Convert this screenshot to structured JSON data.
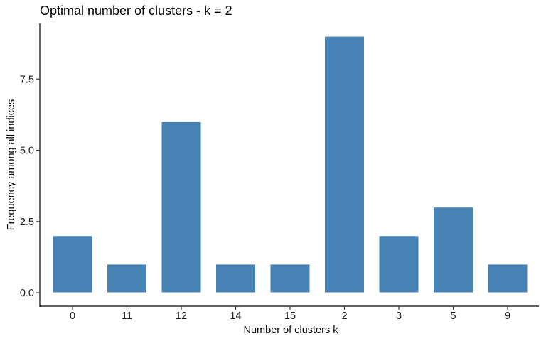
{
  "chart_data": {
    "type": "bar",
    "title": "Optimal number of clusters - k = 2",
    "xlabel": "Number of clusters k",
    "ylabel": "Frequency among all indices",
    "categories": [
      "0",
      "11",
      "12",
      "14",
      "15",
      "2",
      "3",
      "5",
      "9"
    ],
    "values": [
      2,
      1,
      6,
      1,
      1,
      9,
      2,
      3,
      1
    ],
    "yticks": [
      0.0,
      2.5,
      5.0,
      7.5
    ],
    "ytick_labels": [
      "0.0",
      "2.5",
      "5.0",
      "7.5"
    ],
    "ylim": [
      0,
      9.45
    ],
    "bar_color": "#4682B4",
    "grid": false
  }
}
